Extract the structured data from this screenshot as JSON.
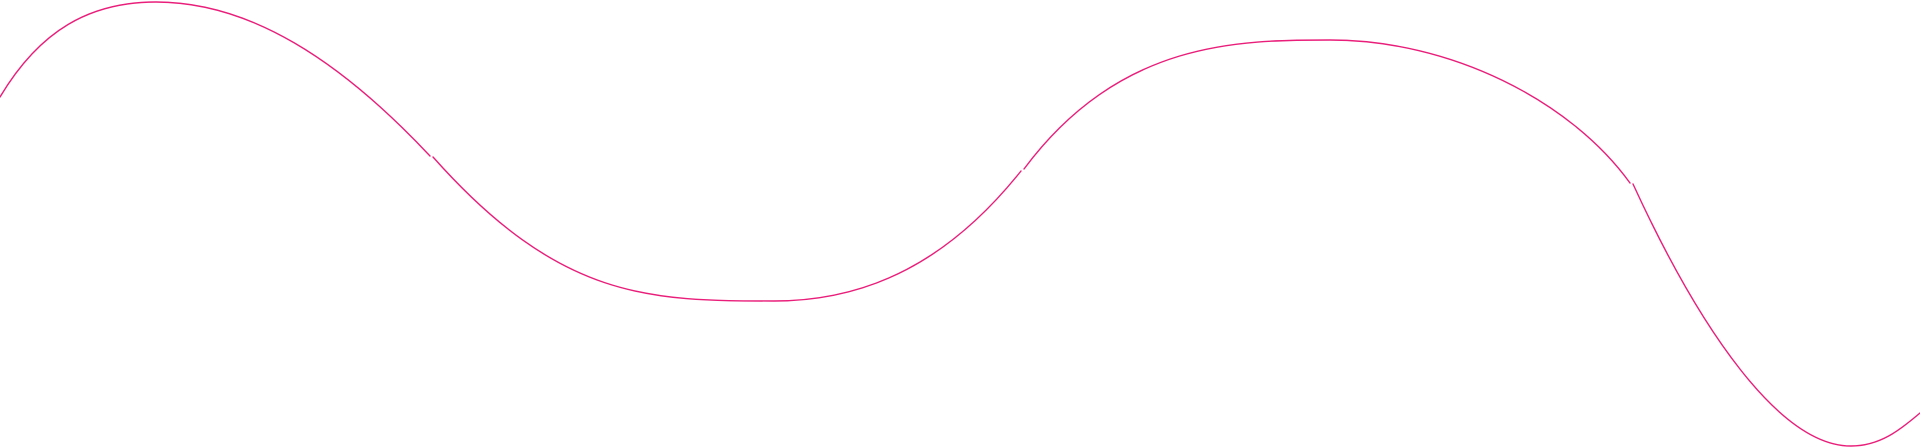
{
  "background_color": "#ffffff",
  "wave": {
    "stroke_color": "#e91e7a",
    "segment_count": 4
  }
}
